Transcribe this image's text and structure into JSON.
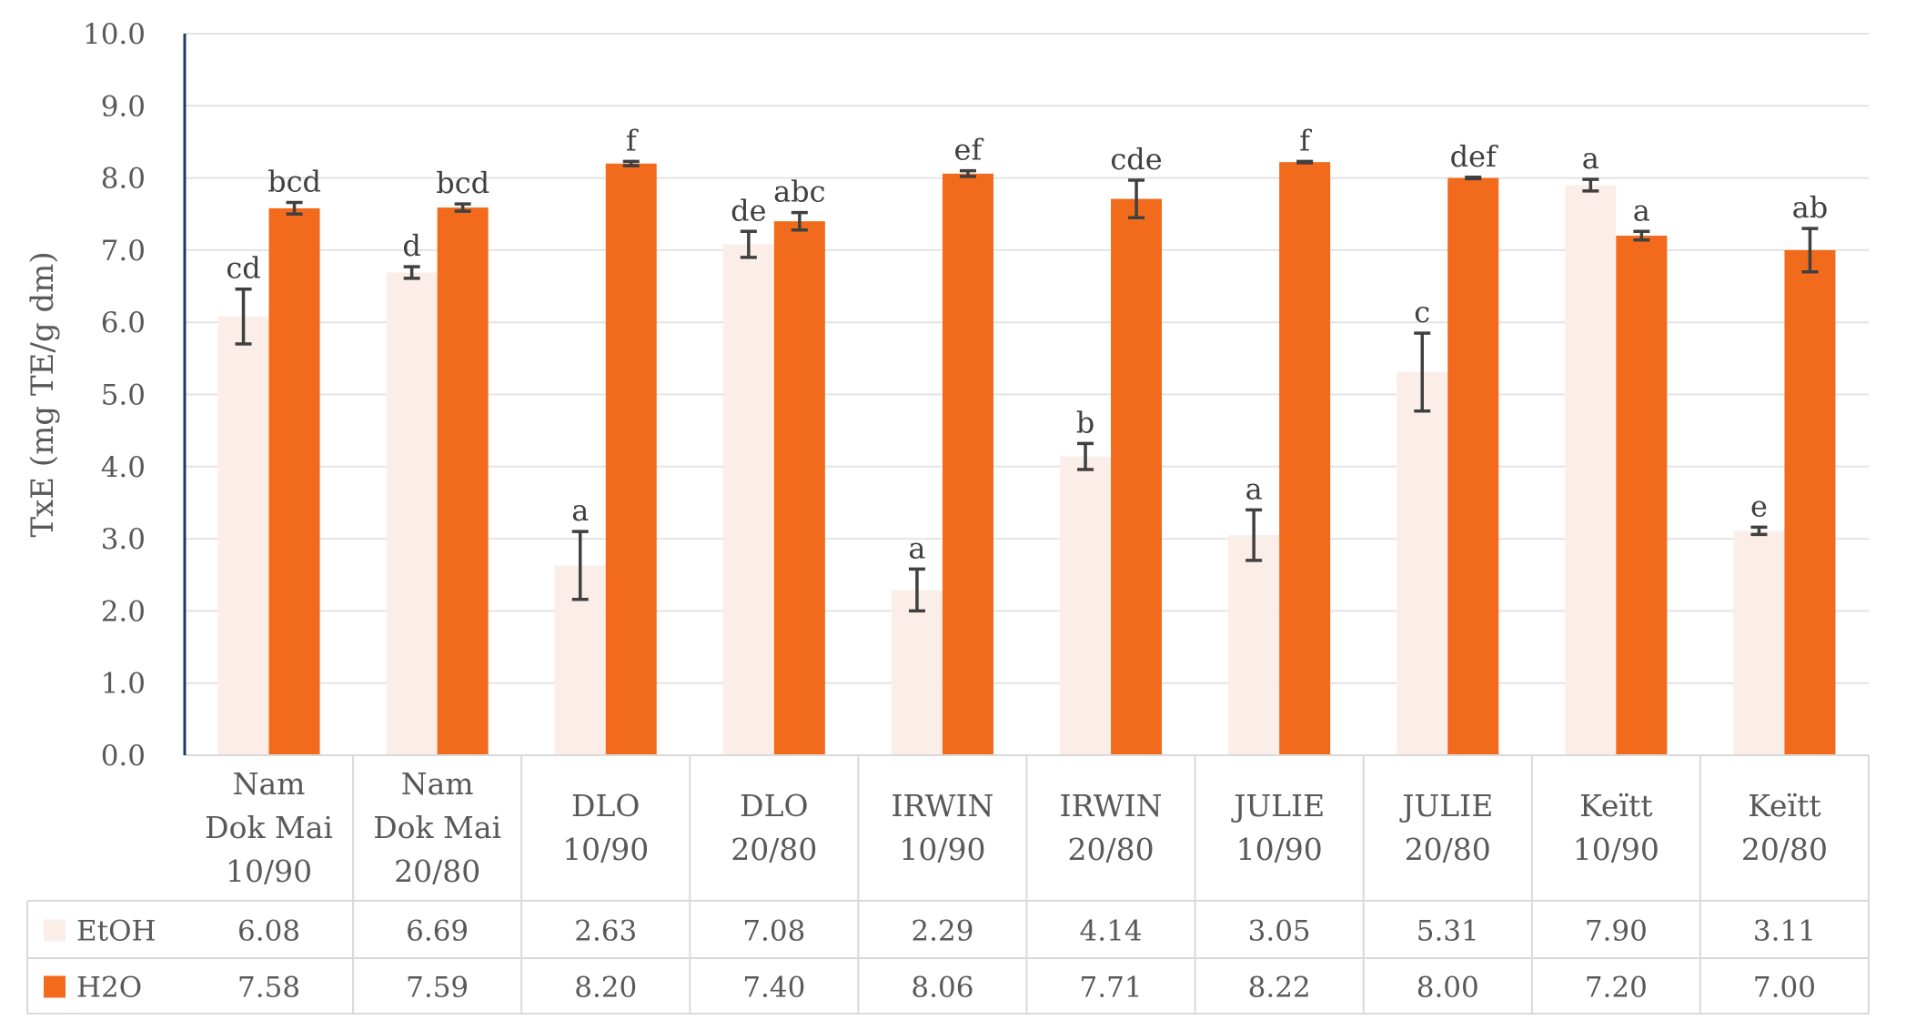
{
  "chart_data": {
    "type": "bar",
    "ylabel": "TxE (mg TE/g dm)",
    "ylim": [
      0,
      10
    ],
    "yticks": [
      "0.0",
      "1.0",
      "2.0",
      "3.0",
      "4.0",
      "5.0",
      "6.0",
      "7.0",
      "8.0",
      "9.0",
      "10.0"
    ],
    "grid": true,
    "categories": [
      [
        "Nam",
        "Dok Mai",
        "10/90"
      ],
      [
        "Nam",
        "Dok Mai",
        "20/80"
      ],
      [
        "DLO",
        "10/90"
      ],
      [
        "DLO",
        "20/80"
      ],
      [
        "IRWIN",
        "10/90"
      ],
      [
        "IRWIN",
        "20/80"
      ],
      [
        "JULIE",
        "10/90"
      ],
      [
        "JULIE",
        "20/80"
      ],
      [
        "Keïtt",
        "10/90"
      ],
      [
        "Keïtt",
        "20/80"
      ]
    ],
    "series": [
      {
        "name": "EtOH",
        "color": "#FBEEE9",
        "values": [
          6.08,
          6.69,
          2.63,
          7.08,
          2.29,
          4.14,
          3.05,
          5.31,
          7.9,
          3.11
        ],
        "table_values": [
          "6.08",
          "6.69",
          "2.63",
          "7.08",
          "2.29",
          "4.14",
          "3.05",
          "5.31",
          "7.90",
          "3.11"
        ],
        "errors": [
          0.38,
          0.08,
          0.47,
          0.18,
          0.29,
          0.18,
          0.35,
          0.54,
          0.08,
          0.05
        ],
        "letters": [
          "cd",
          "d",
          "a",
          "de",
          "a",
          "b",
          "a",
          "c",
          "a",
          "e"
        ]
      },
      {
        "name": "H2O",
        "color": "#F26A1B",
        "values": [
          7.58,
          7.59,
          8.2,
          7.4,
          8.06,
          7.71,
          8.22,
          8.0,
          7.2,
          7.0
        ],
        "table_values": [
          "7.58",
          "7.59",
          "8.20",
          "7.40",
          "8.06",
          "7.71",
          "8.22",
          "8.00",
          "7.20",
          "7.00"
        ],
        "errors": [
          0.08,
          0.05,
          0.03,
          0.12,
          0.04,
          0.26,
          0.01,
          0.01,
          0.06,
          0.3
        ],
        "letters": [
          "bcd",
          "bcd",
          "f",
          "abc",
          "ef",
          "cde",
          "f",
          "def",
          "a",
          "ab"
        ]
      }
    ]
  }
}
